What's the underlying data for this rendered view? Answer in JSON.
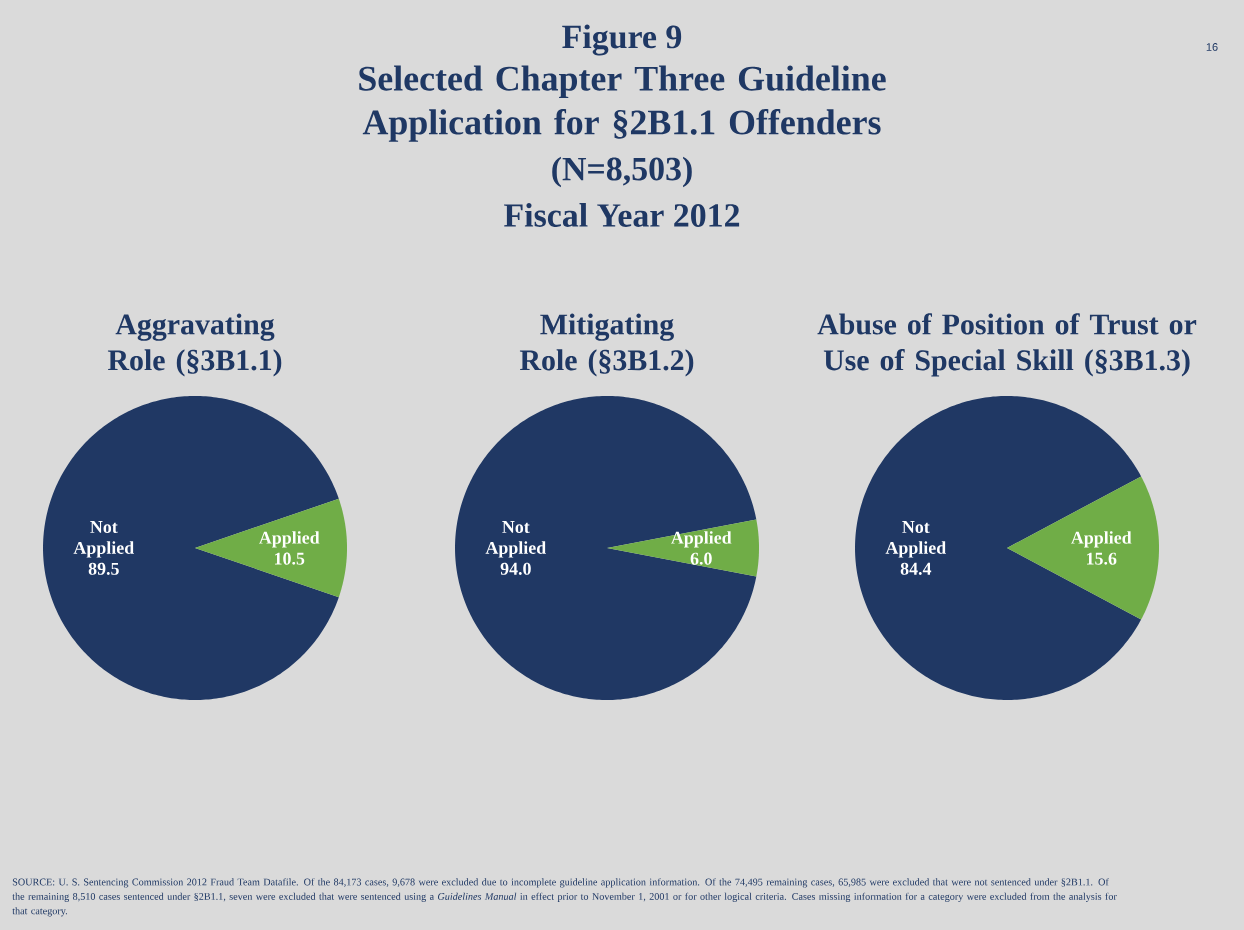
{
  "chart_data": [
    {
      "type": "other",
      "title": "Figure 9",
      "subtitle": "Selected Chapter Three Guideline Application for §2B1.1 Offenders",
      "annotations": [
        "(N=8,503)",
        "Fiscal Year 2012",
        "16",
        "SOURCE: U. S. Sentencing Commission 2012 Fraud Team Datafile. Of the 84,173 cases, 9,678 were excluded due to incomplete guideline application information. Of the 74,495 remaining cases, 65,985 were excluded that were not sentenced under §2B1.1. Of the remaining 8,510 cases sentenced under §2B1.1, seven were excluded that were sentenced using a *Guidelines Manual* in effect prior to November 1, 2001 or for other logical criteria. Cases missing information for a category were excluded from the analysis for that category."
      ]
    },
    {
      "type": "pie",
      "title": "Aggravating Role (§3B1.1)",
      "categories": [
        "Not Applied",
        "Applied"
      ],
      "values": [
        89.5,
        10.5
      ],
      "colors": [
        "#203864",
        "#70ad47"
      ],
      "value_labels": [
        "89.5",
        "10.5"
      ]
    },
    {
      "type": "pie",
      "title": "Mitigating Role (§3B1.2)",
      "categories": [
        "Not Applied",
        "Applied"
      ],
      "values": [
        94.0,
        6.0
      ],
      "colors": [
        "#203864",
        "#70ad47"
      ],
      "value_labels": [
        "94.0",
        "6.0"
      ]
    },
    {
      "type": "pie",
      "title": "Abuse of Position of Trust or Use of Special Skill (§3B1.3)",
      "categories": [
        "Not Applied",
        "Applied"
      ],
      "values": [
        84.4,
        15.6
      ],
      "colors": [
        "#203864",
        "#70ad47"
      ],
      "value_labels": [
        "84.4",
        "15.6"
      ]
    }
  ]
}
